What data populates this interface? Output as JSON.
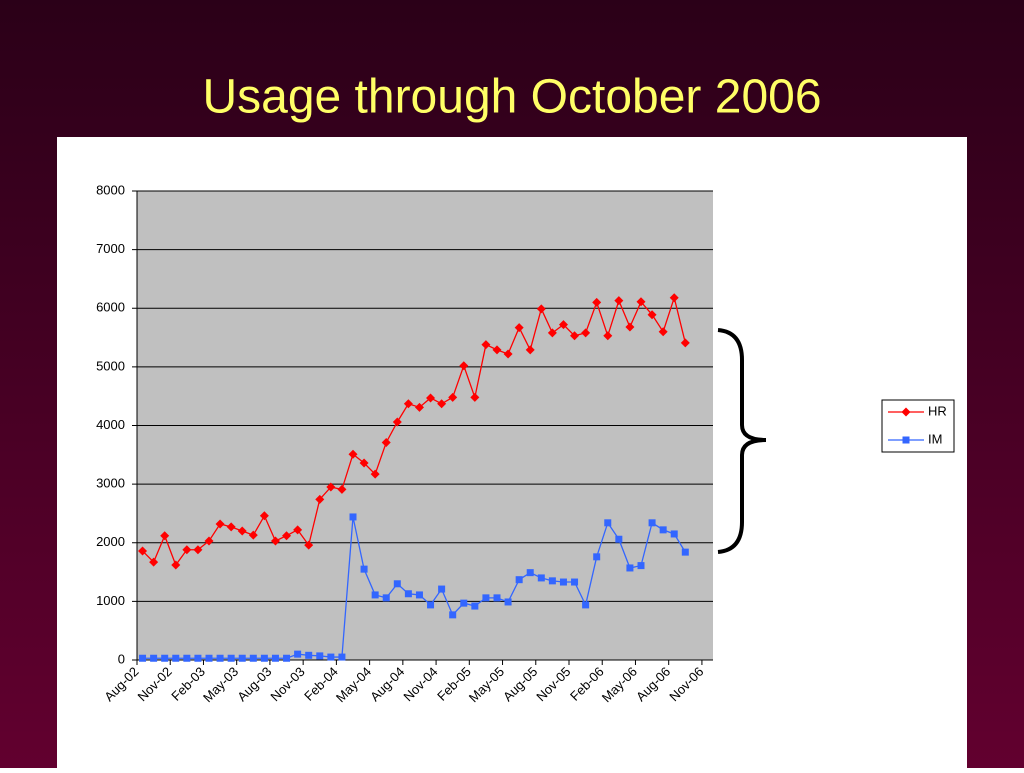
{
  "chart_data": {
    "type": "line",
    "title": "Usage through October 2006",
    "categories": [
      "Aug-02",
      null,
      null,
      "Nov-02",
      null,
      null,
      "Feb-03",
      null,
      null,
      "May-03",
      null,
      null,
      "Aug-03",
      null,
      null,
      "Nov-03",
      null,
      null,
      "Feb-04",
      null,
      null,
      "May-04",
      null,
      null,
      "Aug-04",
      null,
      null,
      "Nov-04",
      null,
      null,
      "Feb-05",
      null,
      null,
      "May-05",
      null,
      null,
      "Aug-05",
      null,
      null,
      "Nov-05",
      null,
      null,
      "Feb-06",
      null,
      null,
      "May-06",
      null,
      null,
      "Aug-06",
      null,
      null,
      "Nov-06"
    ],
    "series": [
      {
        "name": "HR",
        "color": "#ff0000",
        "marker": "diamond",
        "values": [
          1860,
          1670,
          2120,
          1620,
          1880,
          1880,
          2030,
          2320,
          2270,
          2200,
          2130,
          2460,
          2030,
          2120,
          2220,
          1960,
          2740,
          2950,
          2910,
          3510,
          3360,
          3170,
          3710,
          4060,
          4370,
          4310,
          4470,
          4370,
          4480,
          5020,
          4480,
          5380,
          5290,
          5220,
          5670,
          5290,
          5990,
          5580,
          5720,
          5530,
          5580,
          6100,
          5530,
          6130,
          5680,
          6110,
          5890,
          5600,
          6180,
          5410,
          null,
          null
        ]
      },
      {
        "name": "IM",
        "color": "#3366ff",
        "marker": "square",
        "values": [
          30,
          30,
          30,
          30,
          30,
          30,
          30,
          30,
          30,
          30,
          30,
          30,
          30,
          30,
          100,
          80,
          70,
          50,
          50,
          2440,
          1550,
          1110,
          1060,
          1300,
          1130,
          1110,
          940,
          1210,
          770,
          970,
          920,
          1060,
          1060,
          990,
          1370,
          1490,
          1400,
          1350,
          1330,
          1330,
          940,
          1760,
          2340,
          2060,
          1570,
          1610,
          2340,
          2220,
          2150,
          1840,
          null,
          null
        ]
      }
    ],
    "ylim": [
      0,
      8000
    ],
    "yticks": [
      0,
      1000,
      2000,
      3000,
      4000,
      5000,
      6000,
      7000,
      8000
    ],
    "grid": true,
    "legend": "right"
  }
}
